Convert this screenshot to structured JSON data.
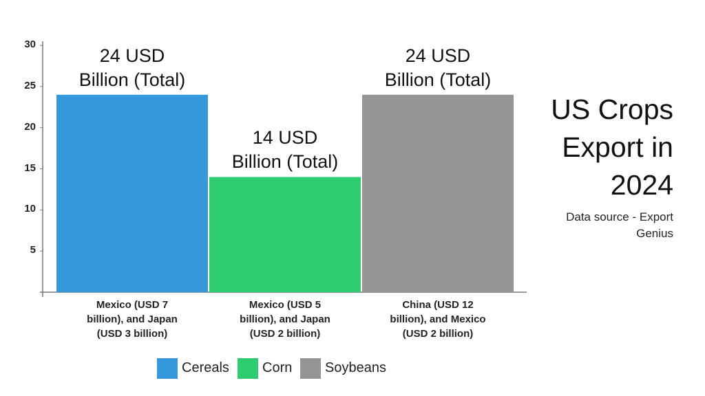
{
  "chart_data": {
    "type": "bar",
    "title": "US Crops Export in 2024",
    "subtitle": "Data source - Export Genius",
    "categories": [
      "Mexico (USD 7 billion), and Japan (USD 3 billion)",
      "Mexico (USD 5 billion), and Japan (USD 2 billion)",
      "China (USD 12 billion), and Mexico (USD 2 billion)"
    ],
    "values": [
      24,
      14,
      24
    ],
    "value_labels": [
      "24 USD Billion (Total)",
      "14 USD Billion (Total)",
      "24 USD Billion (Total)"
    ],
    "colors": [
      "#3498db",
      "#2ecc71",
      "#959595"
    ],
    "legend_labels": [
      "Cereals",
      "Corn",
      "Soybeans"
    ],
    "ylim": [
      0,
      30
    ],
    "yticks": [
      5,
      10,
      15,
      20,
      25,
      30
    ],
    "grid": false
  }
}
